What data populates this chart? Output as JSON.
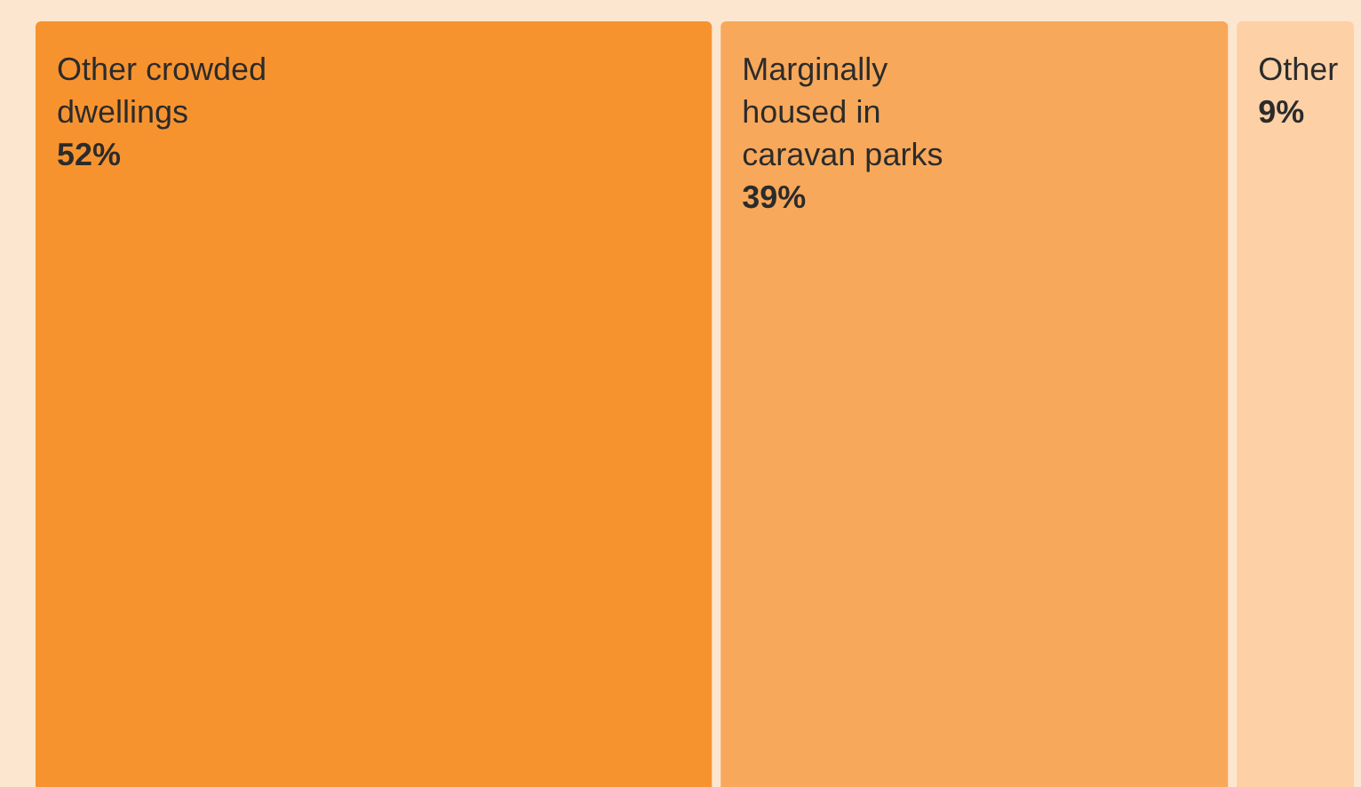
{
  "chart_data": {
    "type": "other",
    "categories": [
      "Other crowded dwellings",
      "Marginally housed in caravan parks",
      "Other"
    ],
    "values": [
      52,
      39,
      9
    ],
    "value_labels": [
      "52%",
      "39%",
      "9%"
    ],
    "colors": [
      "#f7932f",
      "#f7a85a",
      "#fdd0a5"
    ]
  }
}
